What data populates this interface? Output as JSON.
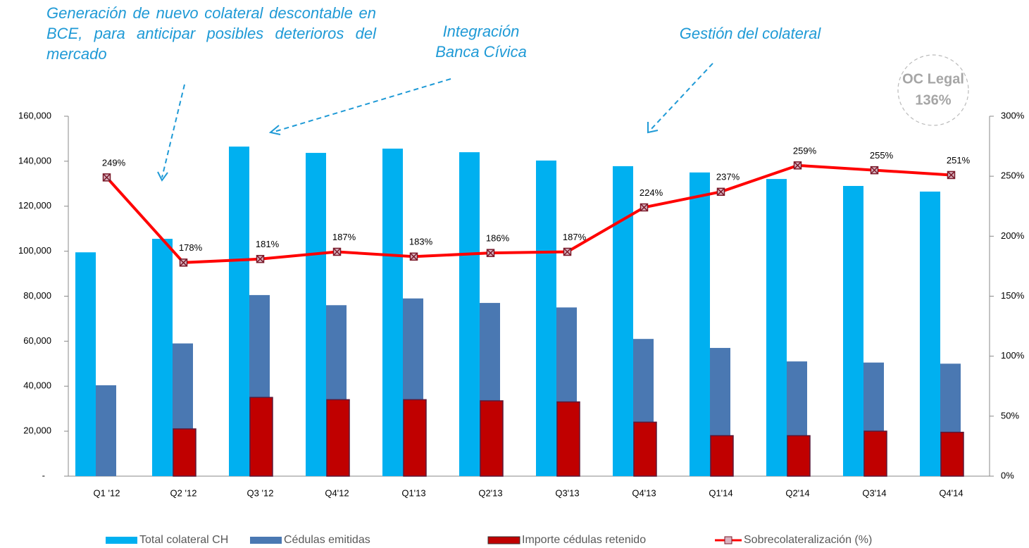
{
  "chart_data": {
    "type": "bar",
    "categories": [
      "Q1 '12",
      "Q2  '12",
      "Q3 '12",
      "Q4'12",
      "Q1'13",
      "Q2'13",
      "Q3'13",
      "Q4'13",
      "Q1'14",
      "Q2'14",
      "Q3'14",
      "Q4'14"
    ],
    "series": [
      {
        "name": "Total colateral CH",
        "color": "#00b0f0",
        "type": "bar",
        "values": [
          99500,
          105500,
          146500,
          143700,
          145600,
          144000,
          140300,
          137800,
          135000,
          132100,
          129000,
          126500
        ]
      },
      {
        "name": "Cédulas emitidas",
        "color": "#4a78b2",
        "type": "bar",
        "values": [
          40400,
          59000,
          80500,
          76000,
          79000,
          77000,
          75000,
          61000,
          57000,
          51000,
          50500,
          50000
        ]
      },
      {
        "name": "Importe cédulas  retenido",
        "color": "#c00000",
        "type": "bar",
        "values": [
          null,
          21000,
          35000,
          34000,
          34000,
          33500,
          33000,
          24000,
          18000,
          18000,
          20000,
          19500
        ]
      },
      {
        "name": "Sobrecolateralización (%)",
        "color": "#ff0000",
        "type": "line",
        "axis": "y2",
        "values": [
          249,
          178,
          181,
          187,
          183,
          186,
          187,
          224,
          237,
          259,
          255,
          251
        ],
        "value_labels": [
          "249%",
          "178%",
          "181%",
          "187%",
          "183%",
          "186%",
          "187%",
          "224%",
          "237%",
          "259%",
          "255%",
          "251%"
        ]
      }
    ],
    "ylim": [
      0,
      160000
    ],
    "yticks": [
      {
        "value": 0,
        "label": "-"
      },
      {
        "value": 20000,
        "label": "20,000"
      },
      {
        "value": 40000,
        "label": "40,000"
      },
      {
        "value": 60000,
        "label": "60,000"
      },
      {
        "value": 80000,
        "label": "80,000"
      },
      {
        "value": 100000,
        "label": "100,000"
      },
      {
        "value": 120000,
        "label": "120,000"
      },
      {
        "value": 140000,
        "label": "140,000"
      },
      {
        "value": 160000,
        "label": "160,000"
      }
    ],
    "y2lim": [
      0,
      300
    ],
    "y2ticks": [
      {
        "value": 0,
        "label": "0%"
      },
      {
        "value": 50,
        "label": "50%"
      },
      {
        "value": 100,
        "label": "100%"
      },
      {
        "value": 150,
        "label": "150%"
      },
      {
        "value": 200,
        "label": "200%"
      },
      {
        "value": 250,
        "label": "250%"
      },
      {
        "value": 300,
        "label": "300%"
      }
    ],
    "grid": false,
    "legend": "bottom",
    "annotations": [
      "Generación de nuevo colateral descontable en BCE, para anticipar posibles deterioros del mercado",
      "Integración Banca Cívica",
      "Gestión del colateral"
    ],
    "badge": [
      "OC Legal",
      "136%"
    ]
  }
}
